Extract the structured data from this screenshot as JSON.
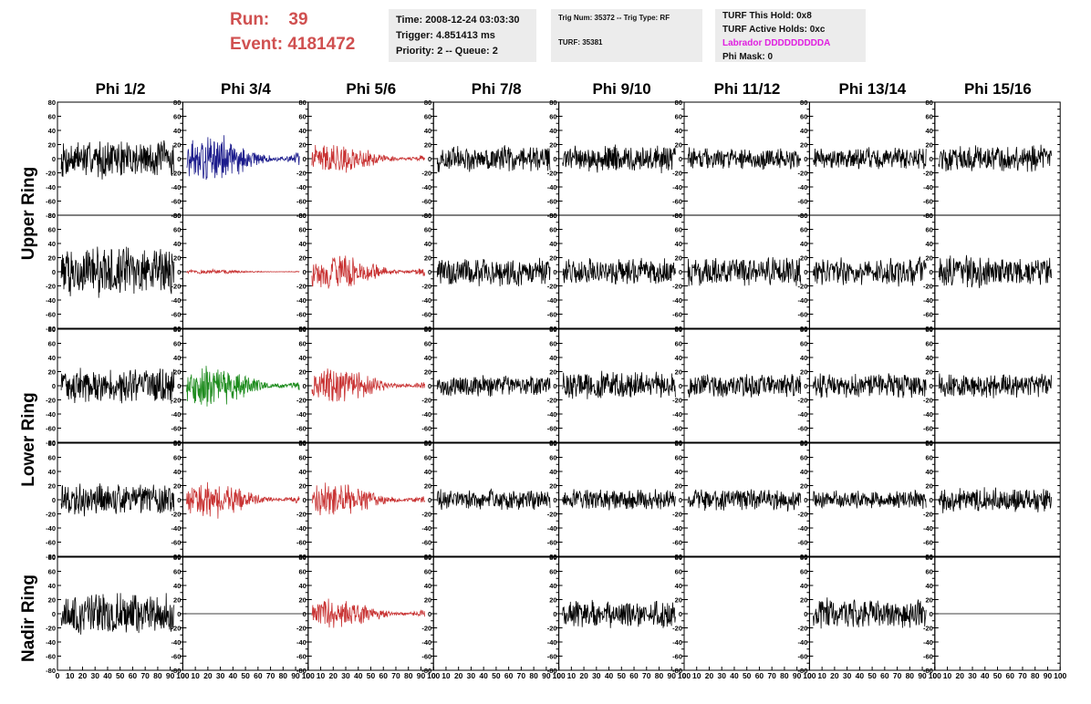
{
  "header": {
    "run_label": "Run:",
    "run_value": "39",
    "event_label": "Event:",
    "event_value": "4181472"
  },
  "info_box_1": {
    "time": "Time: 2008-12-24 03:03:30",
    "trigger": "Trigger: 4.851413 ms",
    "priority": "Priority: 2 -- Queue: 2"
  },
  "info_box_2": {
    "trig": "Trig Num: 35372 -- Trig Type: RF",
    "turf": "TURF: 35381"
  },
  "info_box_3": {
    "this_hold": "TURF This Hold: 0x8",
    "active_holds": "TURF Active Holds: 0xc",
    "labrador": "Labrador DDDDDDDDDA",
    "phi_mask": "Phi Mask: 0"
  },
  "columns": [
    "Phi 1/2",
    "Phi 3/4",
    "Phi 5/6",
    "Phi 7/8",
    "Phi 9/10",
    "Phi 11/12",
    "Phi 13/14",
    "Phi 15/16"
  ],
  "ring_labels": {
    "upper": "Upper Ring",
    "lower": "Lower Ring",
    "nadir": "Nadir Ring"
  },
  "colors": {
    "default_trace": "#000000",
    "red_trace": "#c83232",
    "blue_trace": "#1c1c8c",
    "green_trace": "#1e8c1e",
    "run_text": "#d05050",
    "labrador_text": "#e020e0",
    "info_box_bg": "#ececec"
  },
  "chart_data": {
    "type": "line",
    "y_ticks": [
      "80",
      "60",
      "40",
      "20",
      "0",
      "-20",
      "-40",
      "-60",
      "-80"
    ],
    "x_ticks": [
      "0",
      "10",
      "20",
      "30",
      "40",
      "50",
      "60",
      "70",
      "80",
      "90",
      "100"
    ],
    "ylim": [
      -80,
      80
    ],
    "xlim": [
      0,
      100
    ],
    "grid": false,
    "panels": [
      [
        {
          "color": "black",
          "amplitude": 25
        },
        {
          "color": "blue",
          "amplitude": 32
        },
        {
          "color": "red",
          "amplitude": 20
        },
        {
          "color": "black",
          "amplitude": 17
        },
        {
          "color": "black",
          "amplitude": 18
        },
        {
          "color": "black",
          "amplitude": 14
        },
        {
          "color": "black",
          "amplitude": 14
        },
        {
          "color": "black",
          "amplitude": 18
        }
      ],
      [
        {
          "color": "black",
          "amplitude": 32
        },
        {
          "color": "red",
          "amplitude": 3
        },
        {
          "color": "red",
          "amplitude": 24
        },
        {
          "color": "black",
          "amplitude": 18
        },
        {
          "color": "black",
          "amplitude": 17
        },
        {
          "color": "black",
          "amplitude": 18
        },
        {
          "color": "black",
          "amplitude": 18
        },
        {
          "color": "black",
          "amplitude": 20
        }
      ],
      [
        {
          "color": "black",
          "amplitude": 24
        },
        {
          "color": "green",
          "amplitude": 28
        },
        {
          "color": "red",
          "amplitude": 24
        },
        {
          "color": "black",
          "amplitude": 14
        },
        {
          "color": "black",
          "amplitude": 18
        },
        {
          "color": "black",
          "amplitude": 16
        },
        {
          "color": "black",
          "amplitude": 16
        },
        {
          "color": "black",
          "amplitude": 16
        }
      ],
      [
        {
          "color": "black",
          "amplitude": 22
        },
        {
          "color": "red",
          "amplitude": 24
        },
        {
          "color": "red",
          "amplitude": 22
        },
        {
          "color": "black",
          "amplitude": 14
        },
        {
          "color": "black",
          "amplitude": 14
        },
        {
          "color": "black",
          "amplitude": 14
        },
        {
          "color": "black",
          "amplitude": 12
        },
        {
          "color": "black",
          "amplitude": 16
        }
      ],
      [
        {
          "color": "black",
          "amplitude": 28
        },
        {
          "color": "black",
          "amplitude": 0
        },
        {
          "color": "red",
          "amplitude": 20
        },
        {
          "color": "none",
          "amplitude": 0
        },
        {
          "color": "black",
          "amplitude": 18
        },
        {
          "color": "none",
          "amplitude": 0
        },
        {
          "color": "black",
          "amplitude": 20
        },
        {
          "color": "black",
          "amplitude": 0
        }
      ]
    ]
  }
}
